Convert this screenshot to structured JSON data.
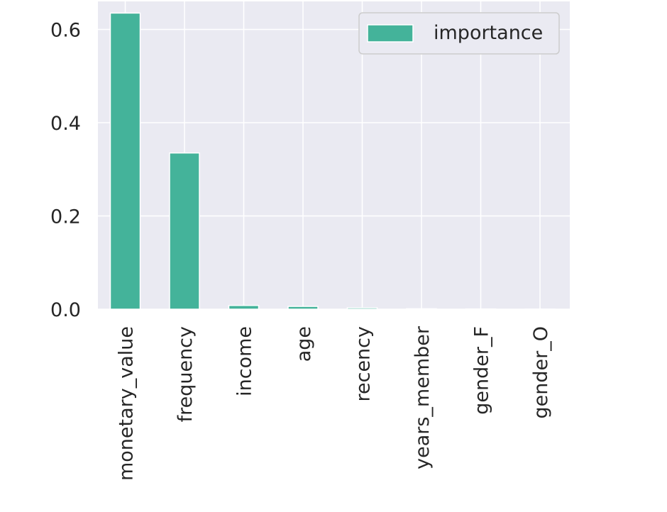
{
  "chart_data": {
    "type": "bar",
    "categories": [
      "monetary_value",
      "frequency",
      "income",
      "age",
      "recency",
      "years_member",
      "gender_F",
      "gender_O"
    ],
    "series": [
      {
        "name": "importance",
        "values": [
          0.635,
          0.335,
          0.008,
          0.006,
          0.003,
          0.001,
          0.0005,
          0.0003
        ]
      }
    ],
    "yticks": [
      0.0,
      0.2,
      0.4,
      0.6
    ],
    "ytick_labels": [
      "0.0",
      "0.2",
      "0.4",
      "0.6"
    ],
    "ylim": [
      0,
      0.66
    ],
    "xlabel": "",
    "ylabel": "",
    "title": "",
    "grid": true,
    "legend": "top-right",
    "colors": {
      "bar": "#44b39a",
      "plot_background": "#eaeaf2",
      "grid": "#ffffff"
    }
  }
}
